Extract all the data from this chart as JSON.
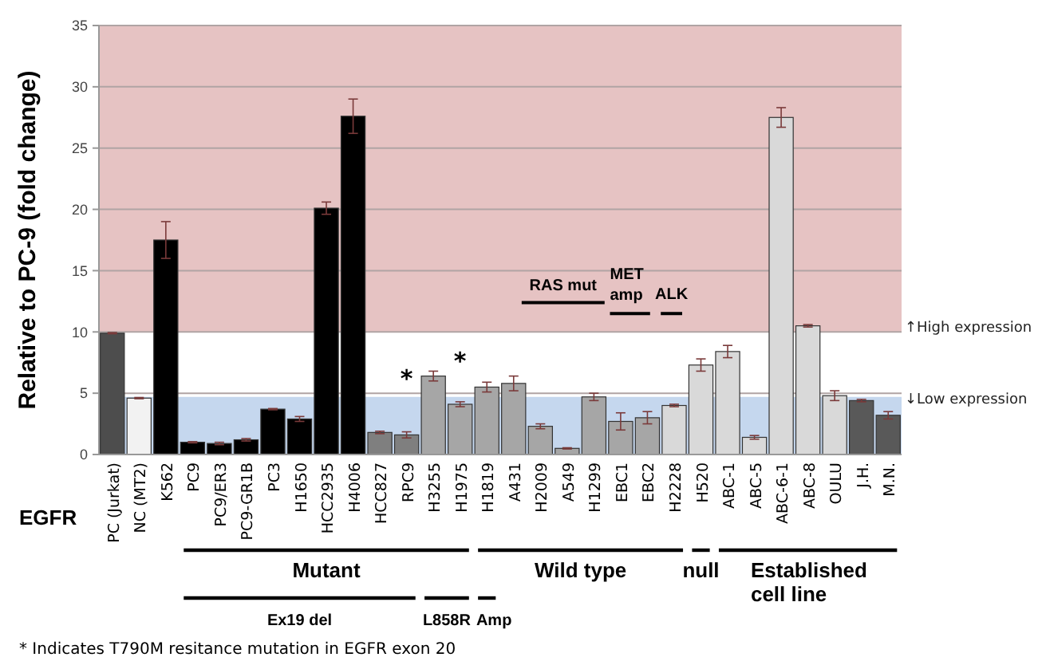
{
  "chart_data": {
    "type": "bar",
    "ylabel": "Relative to PC-9 (fold change)",
    "categories": [
      "PC (Jurkat)",
      "NC (MT2)",
      "K562",
      "PC9",
      "PC9/ER3",
      "PC9-GR1B",
      "PC3",
      "H1650",
      "HCC2935",
      "H4006",
      "HCC827",
      "RPC9",
      "H3255",
      "H1975",
      "H1819",
      "A431",
      "H2009",
      "A549",
      "H1299",
      "EBC1",
      "EBC2",
      "H2228",
      "H520",
      "ABC-1",
      "ABC-5",
      "ABC-6-1",
      "ABC-8",
      "OULU",
      "J.H.",
      "M.N."
    ],
    "values": [
      9.9,
      4.6,
      17.5,
      1.0,
      0.9,
      1.2,
      3.7,
      2.9,
      20.1,
      27.6,
      1.8,
      1.6,
      6.4,
      4.1,
      5.5,
      5.8,
      2.3,
      0.5,
      4.7,
      2.7,
      3.0,
      4.0,
      7.3,
      8.4,
      1.4,
      27.5,
      10.5,
      4.8,
      4.4,
      3.2
    ],
    "errors": [
      0.05,
      0.05,
      1.5,
      0.05,
      0.1,
      0.1,
      0.05,
      0.2,
      0.5,
      1.4,
      0.1,
      0.25,
      0.4,
      0.2,
      0.4,
      0.6,
      0.2,
      0.05,
      0.3,
      0.7,
      0.5,
      0.1,
      0.5,
      0.5,
      0.15,
      0.8,
      0.1,
      0.4,
      0.1,
      0.3
    ],
    "colors": [
      "#4d4d4d",
      "#f2f2f2",
      "#000000",
      "#000000",
      "#000000",
      "#000000",
      "#000000",
      "#000000",
      "#000000",
      "#000000",
      "#7f7f7f",
      "#7f7f7f",
      "#a6a6a6",
      "#a6a6a6",
      "#a6a6a6",
      "#a6a6a6",
      "#a6a6a6",
      "#a6a6a6",
      "#a6a6a6",
      "#a6a6a6",
      "#a6a6a6",
      "#d9d9d9",
      "#d9d9d9",
      "#d9d9d9",
      "#d9d9d9",
      "#d9d9d9",
      "#d9d9d9",
      "#d9d9d9",
      "#595959",
      "#595959"
    ],
    "ylim": [
      0,
      35
    ],
    "yticks": [
      0,
      5,
      10,
      15,
      20,
      25,
      30,
      35
    ],
    "grid": "y",
    "bands": [
      {
        "axis": "y",
        "from": 10,
        "to": 35,
        "label": "↑High expression",
        "color": "#e6c3c3"
      },
      {
        "axis": "y",
        "from": 0,
        "to": 4.7,
        "label": "↓Low expression",
        "color": "#c5d7ee"
      }
    ],
    "annotations": [
      "EGFR",
      "Mutant",
      "Wild type",
      "null",
      "Established cell line",
      "Ex19 del",
      "L858R",
      "Amp",
      "RAS mut",
      "MET amp",
      "ALK",
      "* Indicates T790M resitance mutation in EGFR exon 20",
      "*",
      "*"
    ]
  }
}
